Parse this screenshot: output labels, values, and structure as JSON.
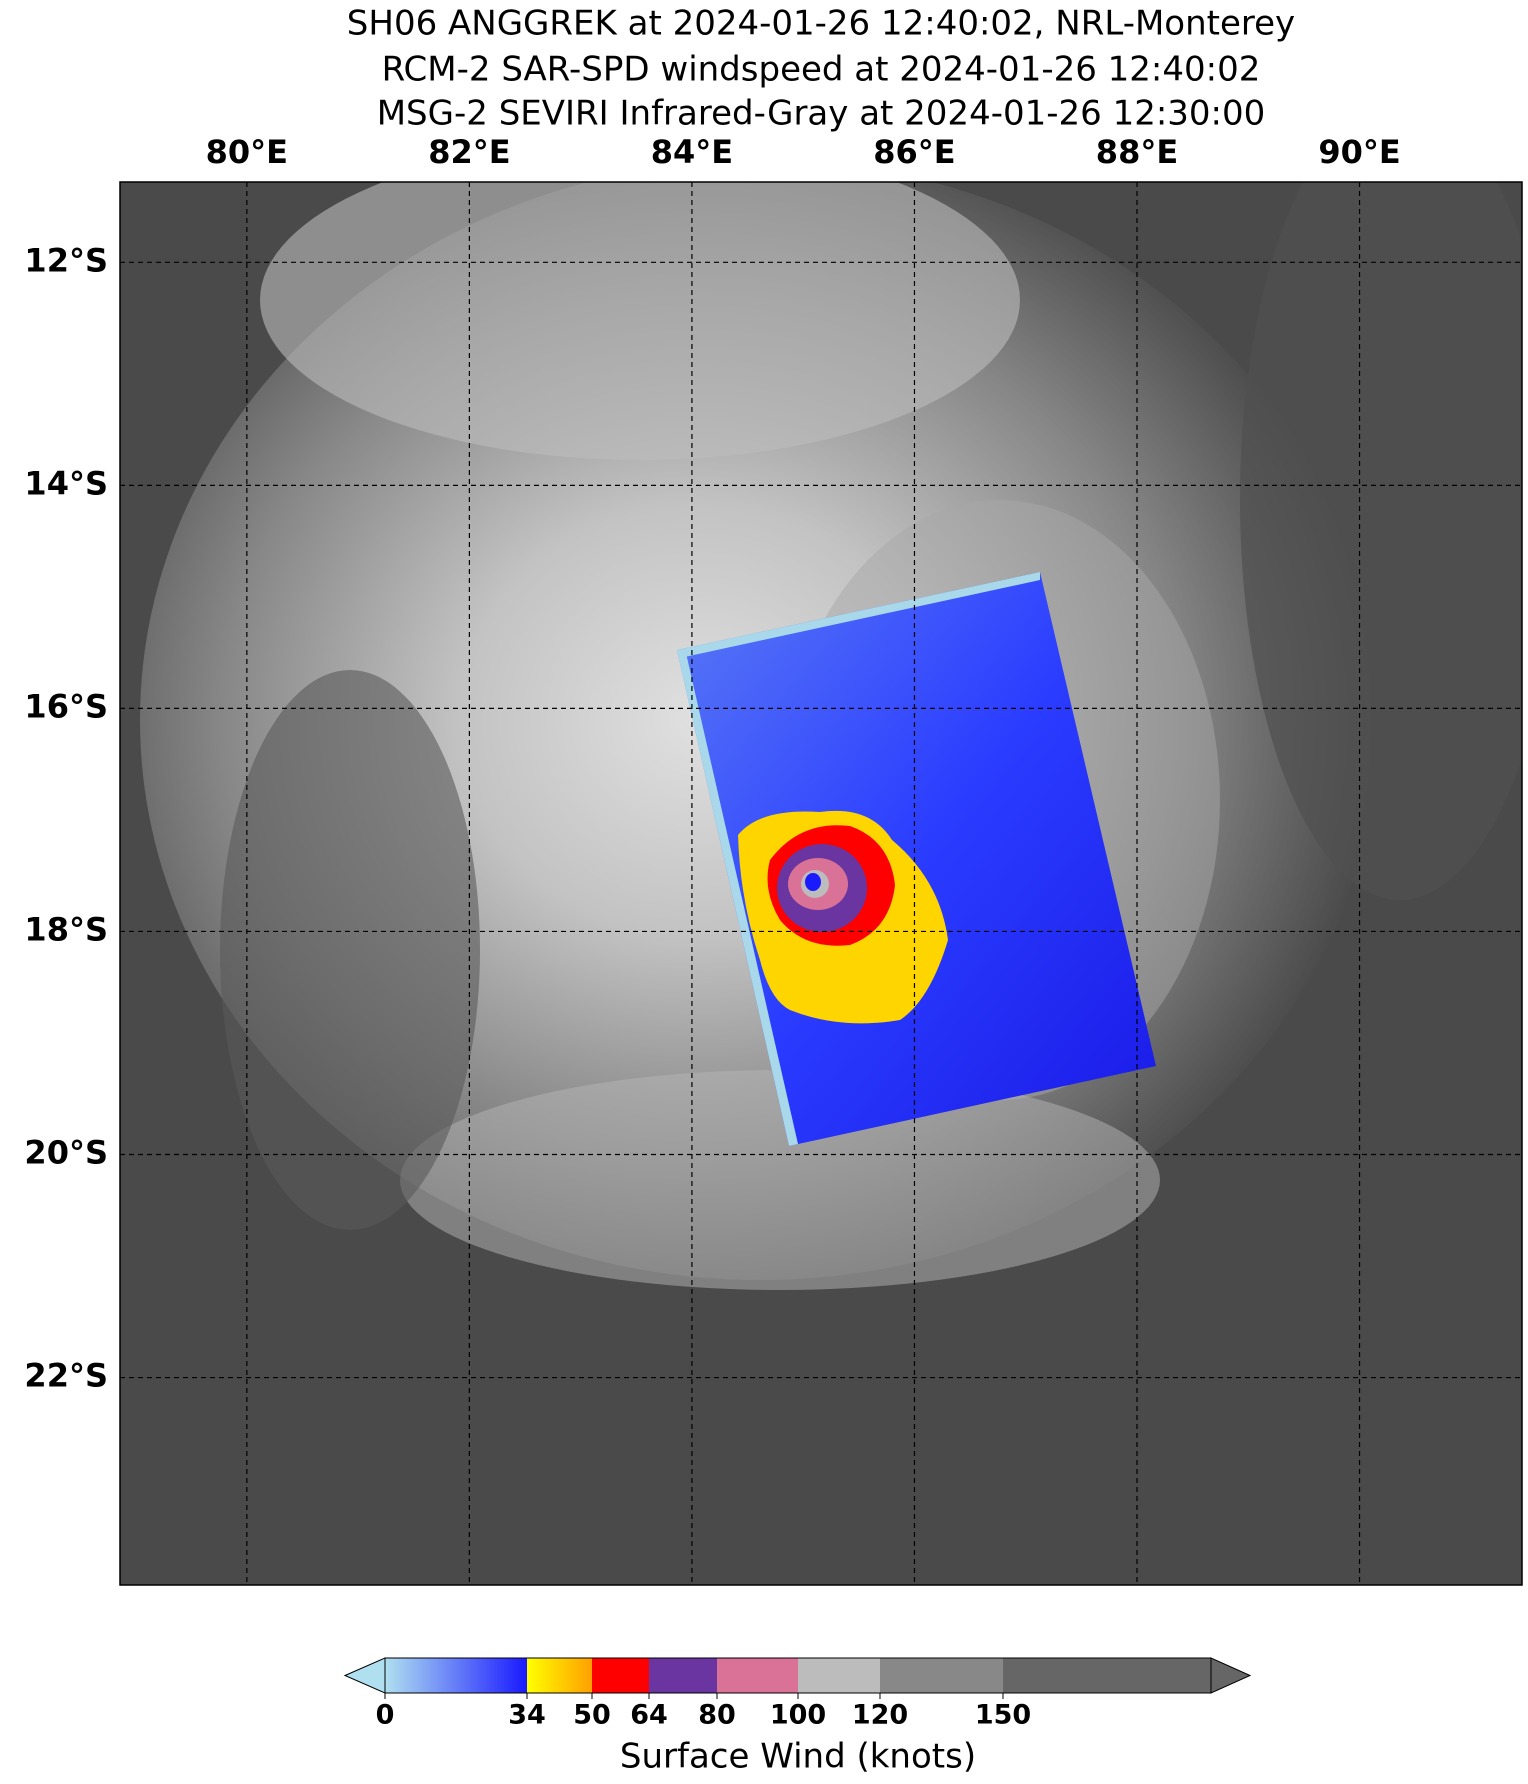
{
  "title_lines": [
    "SH06 ANGGREK at 2024-01-26 12:40:02, NRL-Monterey",
    "RCM-2 SAR-SPD windspeed at 2024-01-26 12:40:02",
    "MSG-2 SEVIRI Infrared-Gray at 2024-01-26 12:30:00"
  ],
  "map": {
    "lon_range": [
      78.86,
      91.46
    ],
    "lat_range": [
      -11.28,
      -23.86
    ],
    "lon_ticks": [
      {
        "value": 80,
        "label": "80°E"
      },
      {
        "value": 82,
        "label": "82°E"
      },
      {
        "value": 84,
        "label": "84°E"
      },
      {
        "value": 86,
        "label": "86°E"
      },
      {
        "value": 88,
        "label": "88°E"
      },
      {
        "value": 90,
        "label": "90°E"
      }
    ],
    "lat_ticks": [
      {
        "value": -12,
        "label": "12°S"
      },
      {
        "value": -14,
        "label": "14°S"
      },
      {
        "value": -16,
        "label": "16°S"
      },
      {
        "value": -18,
        "label": "18°S"
      },
      {
        "value": -20,
        "label": "20°S"
      },
      {
        "value": -22,
        "label": "22°S"
      }
    ],
    "grid": true
  },
  "colorbar": {
    "ticks": [
      0,
      34,
      50,
      64,
      80,
      100,
      120,
      150
    ],
    "colors": [
      "#1a1aff",
      "#ffc800",
      "#ff0000",
      "#6a35a0",
      "#d97296",
      "#bcbcbc",
      "#888888",
      "#666666"
    ],
    "label": "Surface Wind (knots)"
  }
}
